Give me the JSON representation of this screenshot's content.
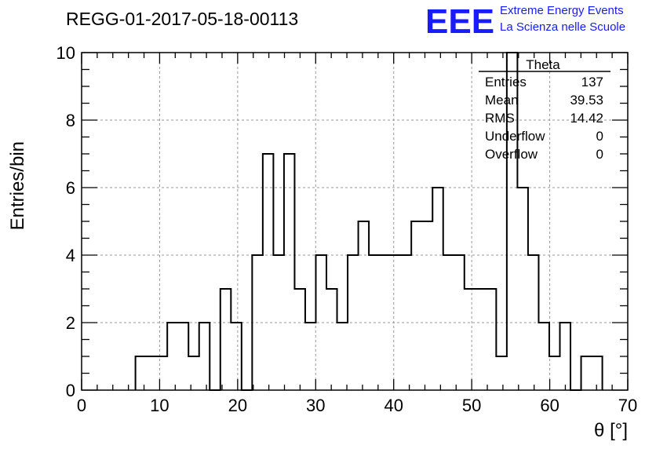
{
  "chart_data": {
    "type": "bar",
    "title": "REGG-01-2017-05-18-00113",
    "xlabel": "θ [°]",
    "ylabel": "Entries/bin",
    "xlim": [
      0,
      70
    ],
    "ylim": [
      0,
      10
    ],
    "x_ticks": [
      0,
      10,
      20,
      30,
      40,
      50,
      60,
      70
    ],
    "y_ticks": [
      0,
      2,
      4,
      6,
      8,
      10
    ],
    "grid": true,
    "bin_width": 1.36,
    "bin_edges_start": 6.9,
    "values": [
      1,
      1,
      1,
      2,
      2,
      1,
      2,
      0,
      3,
      2,
      0,
      4,
      7,
      4,
      7,
      3,
      2,
      4,
      3,
      2,
      4,
      5,
      4,
      4,
      4,
      4,
      5,
      5,
      6,
      4,
      4,
      3,
      3,
      3,
      1,
      10,
      6,
      4,
      2,
      1,
      2,
      0,
      1,
      1
    ],
    "stats": {
      "name": "Theta",
      "rows": [
        {
          "label": "Entries",
          "value": "137"
        },
        {
          "label": "Mean",
          "value": "39.53"
        },
        {
          "label": "RMS",
          "value": "14.42"
        },
        {
          "label": "Underflow",
          "value": "0"
        },
        {
          "label": "Overflow",
          "value": "0"
        }
      ]
    }
  },
  "logo": {
    "mark": "EEE",
    "line1": "Extreme Energy Events",
    "line2": "La Scienza nelle Scuole",
    "color": "#1a1aff"
  }
}
